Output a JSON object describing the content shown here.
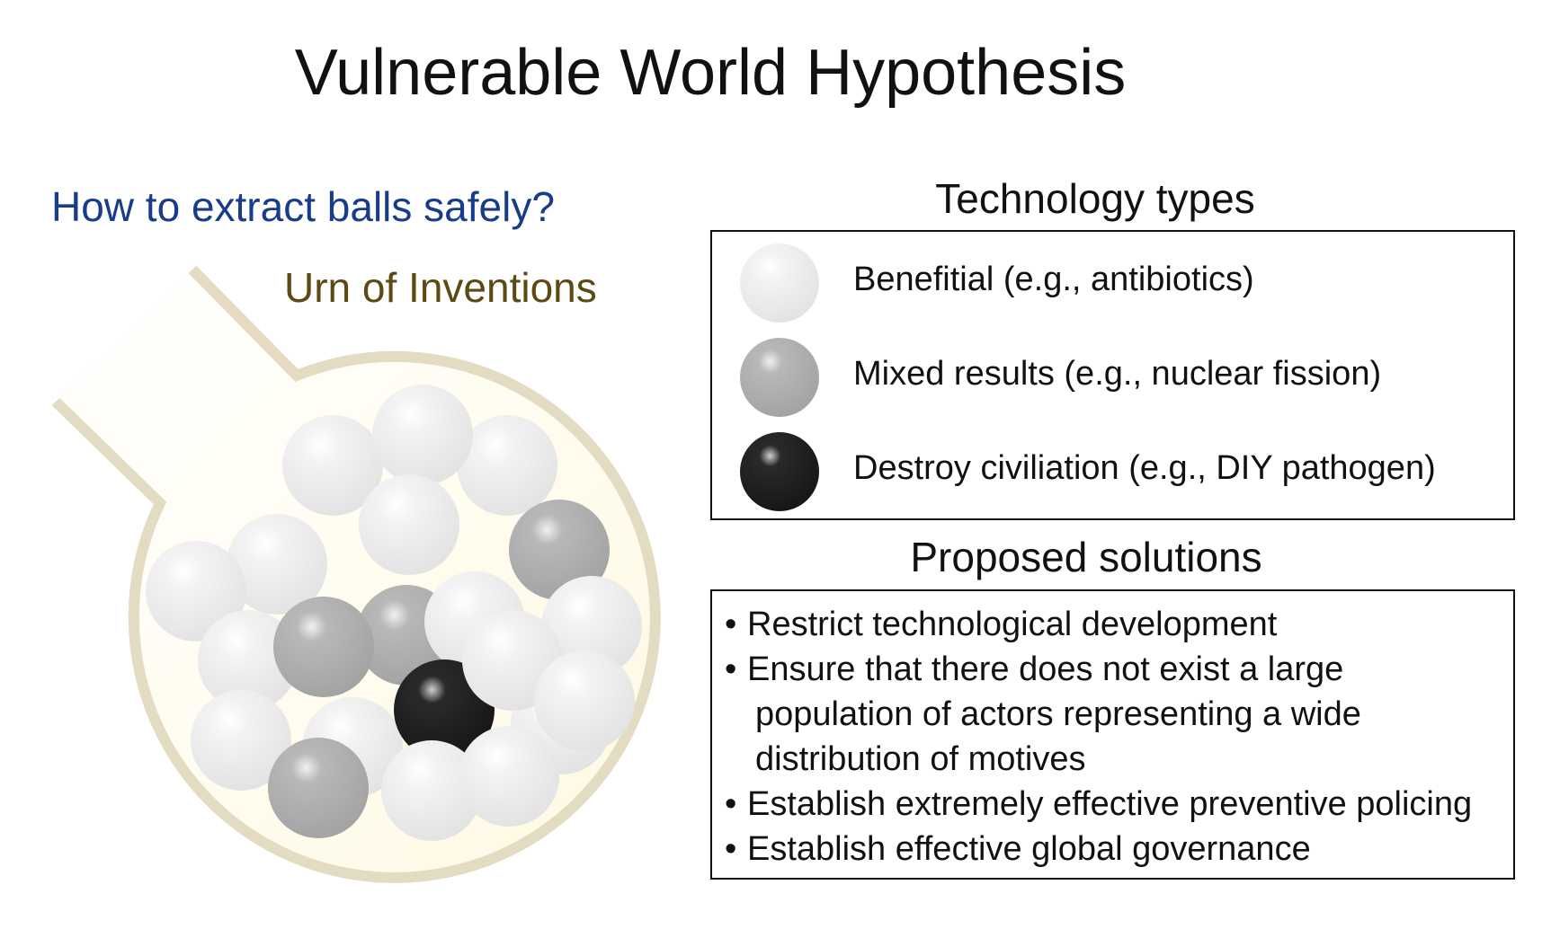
{
  "title": "Vulnerable World Hypothesis",
  "left_panel": {
    "question": "How to extract balls safely?",
    "urn_label": "Urn of Inventions"
  },
  "colors": {
    "beneficial": "#e8e8e8",
    "mixed": "#a9a9a9",
    "destroy": "#1a1a1a",
    "urn_outline": "#e3dbc2",
    "urn_fill": "#fffbea",
    "question_text": "#163c8a",
    "urn_label_text": "#5c4a12"
  },
  "technology_types": {
    "heading": "Technology types",
    "items": [
      {
        "label": "Benefitial (e.g., antibiotics)",
        "ball": "beneficial"
      },
      {
        "label": "Mixed results (e.g., nuclear fission)",
        "ball": "mixed"
      },
      {
        "label": "Destroy civiliation (e.g., DIY pathogen)",
        "ball": "destroy"
      }
    ]
  },
  "proposed_solutions": {
    "heading": "Proposed solutions",
    "bullet": "•",
    "items": [
      {
        "lines": [
          "Restrict technological development"
        ]
      },
      {
        "lines": [
          "Ensure that there does not exist a large",
          "population of actors representing a wide",
          "distribution of motives"
        ]
      },
      {
        "lines": [
          "Establish extremely effective preventive policing"
        ]
      },
      {
        "lines": [
          "Establish effective global governance"
        ]
      }
    ]
  },
  "urn_balls": {
    "count_beneficial": 15,
    "count_mixed": 5,
    "count_destroy": 1
  }
}
